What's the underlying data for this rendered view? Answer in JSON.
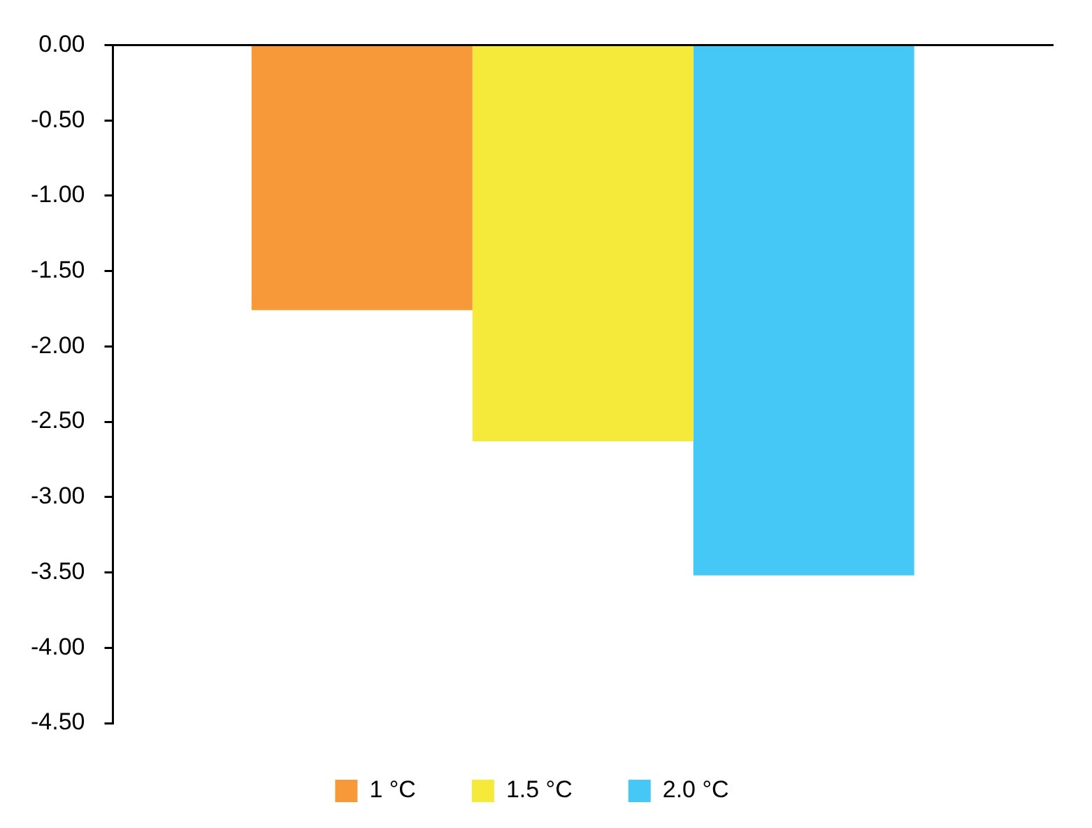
{
  "chart_data": {
    "type": "bar",
    "categories": [
      null
    ],
    "series": [
      {
        "name": "1 °C",
        "color": "#f89939",
        "values": [
          -1.76
        ]
      },
      {
        "name": "1.5 °C",
        "color": "#f5e93a",
        "values": [
          -2.63
        ]
      },
      {
        "name": "2.0 °C",
        "color": "#45c8f5",
        "values": [
          -3.52
        ]
      }
    ],
    "ylim": [
      -4.5,
      0
    ],
    "yticks": [
      {
        "value": 0,
        "label": "0.00"
      },
      {
        "value": -0.5,
        "label": "-0.50"
      },
      {
        "value": -1,
        "label": "-1.00"
      },
      {
        "value": -1.5,
        "label": "-1.50"
      },
      {
        "value": -2,
        "label": "-2.00"
      },
      {
        "value": -2.5,
        "label": "-2.50"
      },
      {
        "value": -3,
        "label": "-3.00"
      },
      {
        "value": -3.5,
        "label": "-3.50"
      },
      {
        "value": -4,
        "label": "-4.00"
      },
      {
        "value": -4.5,
        "label": "-4.50"
      }
    ],
    "grid": false,
    "legend": "bottom"
  }
}
